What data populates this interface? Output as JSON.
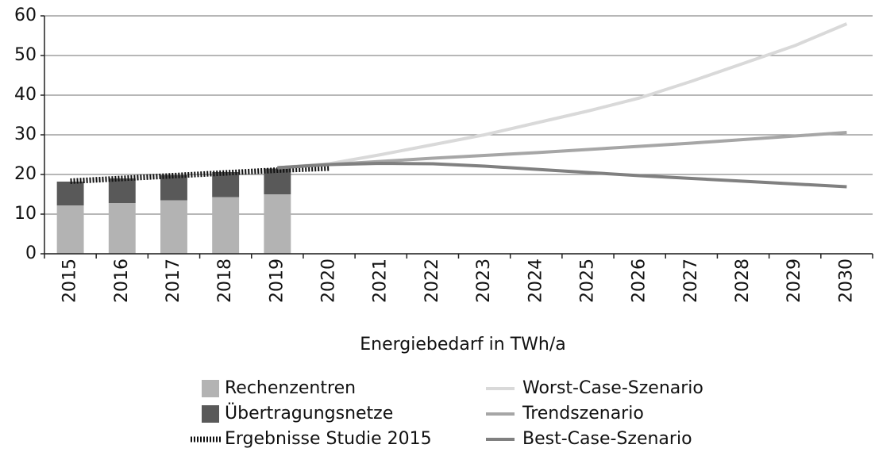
{
  "chart_data": {
    "type": "bar",
    "xlabel": "Energiebedarf in TWh/a",
    "categories": [
      "2015",
      "2016",
      "2017",
      "2018",
      "2019",
      "2020",
      "2021",
      "2022",
      "2023",
      "2024",
      "2025",
      "2026",
      "2027",
      "2028",
      "2029",
      "2030"
    ],
    "ylim": [
      0,
      60
    ],
    "yticks": [
      0,
      10,
      20,
      30,
      40,
      50,
      60
    ],
    "grid": true,
    "series": [
      {
        "name": "Rechenzentren",
        "kind": "bar",
        "color": "#b3b3b3",
        "values": [
          12.2,
          12.8,
          13.5,
          14.3,
          15.0,
          null,
          null,
          null,
          null,
          null,
          null,
          null,
          null,
          null,
          null,
          null
        ]
      },
      {
        "name": "Übertragungsnetze",
        "kind": "bar",
        "color": "#595959",
        "values": [
          6.0,
          6.2,
          6.3,
          6.3,
          6.5,
          null,
          null,
          null,
          null,
          null,
          null,
          null,
          null,
          null,
          null,
          null
        ]
      },
      {
        "name": "Ergebnisse Studie 2015",
        "kind": "line",
        "dashed": true,
        "color": "#111111",
        "values": [
          18.3,
          19.0,
          19.7,
          20.4,
          21.1,
          21.6,
          null,
          null,
          null,
          null,
          null,
          null,
          null,
          null,
          null,
          null
        ]
      },
      {
        "name": "Worst-Case-Szenario",
        "kind": "line",
        "color": "#d9d9d9",
        "values": [
          null,
          null,
          null,
          null,
          21.7,
          22.7,
          25.0,
          27.5,
          30.0,
          33.0,
          36.0,
          39.3,
          43.5,
          48.0,
          52.5,
          58.0
        ]
      },
      {
        "name": "Trendszenario",
        "kind": "line",
        "color": "#a6a6a6",
        "values": [
          null,
          null,
          null,
          null,
          21.7,
          22.5,
          23.3,
          24.1,
          24.8,
          25.5,
          26.3,
          27.1,
          27.9,
          28.8,
          29.7,
          30.6
        ]
      },
      {
        "name": "Best-Case-Szenario",
        "kind": "line",
        "color": "#808080",
        "values": [
          null,
          null,
          null,
          null,
          21.7,
          22.5,
          22.8,
          22.7,
          22.1,
          21.3,
          20.5,
          19.7,
          19.0,
          18.3,
          17.6,
          16.9
        ]
      }
    ]
  }
}
